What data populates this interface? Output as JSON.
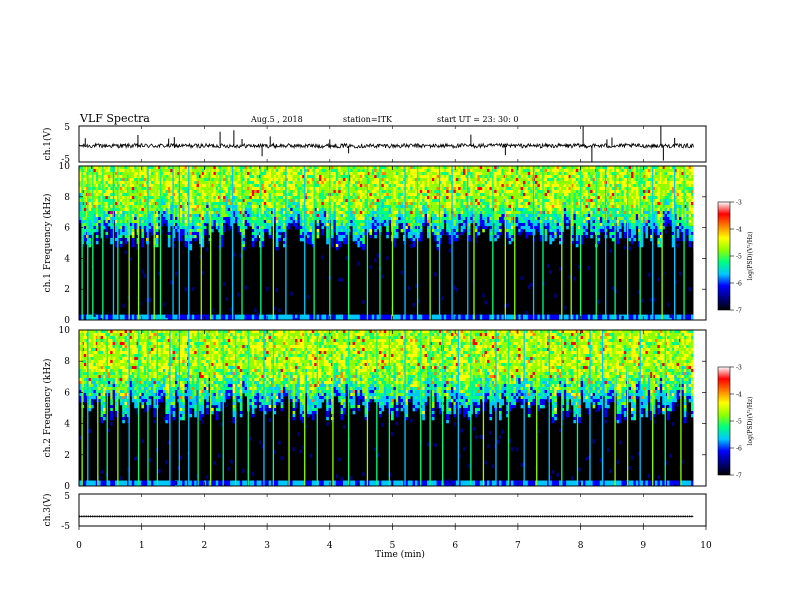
{
  "header": {
    "title": "VLF Spectra",
    "date": "Aug.5 , 2018",
    "station": "station=ITK",
    "start": "start UT = 23: 30: 0"
  },
  "colors": {
    "background": "#000000",
    "trace": "#000000",
    "colormap": [
      "#000000",
      "#000080",
      "#0000ff",
      "#00c8ff",
      "#00ff80",
      "#90ff00",
      "#ffff00",
      "#ff8000",
      "#ff0000",
      "#ffffff"
    ]
  },
  "chart_data": [
    {
      "type": "line",
      "panel": "ch1-waveform",
      "ylabel": "ch.1(V)",
      "yticks": [
        "5",
        "-5"
      ],
      "ylim": [
        -5,
        5
      ],
      "x_range": [
        0,
        9.8
      ],
      "baseline_level": -0.5,
      "noise_amplitude": 0.6,
      "spikes": [
        {
          "x": 0.1,
          "y": 1.6
        },
        {
          "x": 0.94,
          "y": 2.5
        },
        {
          "x": 1.43,
          "y": 1.5
        },
        {
          "x": 1.52,
          "y": 1.9
        },
        {
          "x": 2.25,
          "y": 3.4
        },
        {
          "x": 2.47,
          "y": 3.8
        },
        {
          "x": 2.6,
          "y": 1.4
        },
        {
          "x": 2.92,
          "y": -3.4
        },
        {
          "x": 3.05,
          "y": 2.1
        },
        {
          "x": 4.0,
          "y": 1.3
        },
        {
          "x": 4.3,
          "y": -2.6
        },
        {
          "x": 6.25,
          "y": 2.6
        },
        {
          "x": 6.8,
          "y": -3.1
        },
        {
          "x": 8.04,
          "y": 4.9
        },
        {
          "x": 8.18,
          "y": -5.0
        },
        {
          "x": 8.42,
          "y": 1.3
        },
        {
          "x": 8.5,
          "y": 1.8
        },
        {
          "x": 9.28,
          "y": 5.0
        },
        {
          "x": 9.32,
          "y": -4.6
        },
        {
          "x": 9.5,
          "y": 1.7
        }
      ]
    },
    {
      "type": "heatmap",
      "panel": "ch1-spectrogram",
      "ylabel": "ch.1 Frequency (kHz)",
      "yticks": [
        "0",
        "2",
        "4",
        "6",
        "8",
        "10"
      ],
      "ylim": [
        0,
        10
      ],
      "x_range": [
        0,
        9.8
      ],
      "noise_floor_khz": 5.5,
      "colorbar": {
        "label": "log(PSD)(V²/Hz)",
        "ticks": [
          "-3",
          "-4",
          "-5",
          "-6",
          "-7"
        ],
        "range": [
          -7,
          -3
        ]
      },
      "burst_times": [
        0.05,
        0.14,
        0.22,
        0.38,
        0.55,
        0.62,
        0.8,
        0.95,
        1.1,
        1.2,
        1.3,
        1.5,
        1.6,
        1.75,
        1.95,
        2.1,
        2.25,
        2.45,
        2.6,
        2.9,
        3.1,
        3.3,
        3.6,
        3.75,
        4.0,
        4.3,
        4.6,
        4.8,
        5.0,
        5.2,
        5.4,
        5.6,
        5.75,
        5.95,
        6.2,
        6.3,
        6.6,
        6.8,
        6.95,
        7.25,
        7.4,
        7.7,
        7.85,
        8.0,
        8.25,
        8.4,
        8.55,
        8.75,
        8.95,
        9.15,
        9.3,
        9.5,
        9.65
      ]
    },
    {
      "type": "heatmap",
      "panel": "ch2-spectrogram",
      "ylabel": "ch.2 Frequency (kHz)",
      "yticks": [
        "0",
        "2",
        "4",
        "6",
        "8",
        "10"
      ],
      "ylim": [
        0,
        10
      ],
      "x_range": [
        0,
        9.8
      ],
      "noise_floor_khz": 5.0,
      "colorbar": {
        "label": "log(PSD)(V²/Hz)",
        "ticks": [
          "-3",
          "-4",
          "-5",
          "-6",
          "-7"
        ],
        "range": [
          -7,
          -3
        ]
      },
      "burst_times": [
        0.05,
        0.14,
        0.3,
        0.45,
        0.62,
        0.8,
        0.95,
        1.1,
        1.25,
        1.45,
        1.6,
        1.75,
        1.9,
        2.1,
        2.3,
        2.5,
        2.7,
        2.95,
        3.1,
        3.35,
        3.6,
        3.8,
        4.05,
        4.3,
        4.6,
        4.75,
        4.95,
        5.2,
        5.45,
        5.6,
        5.8,
        6.05,
        6.25,
        6.45,
        6.65,
        6.85,
        7.1,
        7.3,
        7.5,
        7.7,
        7.95,
        8.15,
        8.35,
        8.55,
        8.75,
        8.95,
        9.15,
        9.35,
        9.6
      ]
    },
    {
      "type": "line",
      "panel": "ch3-waveform",
      "ylabel": "ch.3(V)",
      "yticks": [
        "5",
        "-5"
      ],
      "ylim": [
        -5,
        5
      ],
      "x_range": [
        0,
        9.8
      ],
      "baseline_level": -2.0,
      "xlabel": "Time (min)",
      "xticks": [
        "0",
        "1",
        "2",
        "3",
        "4",
        "5",
        "6",
        "7",
        "8",
        "9",
        "10"
      ],
      "xlim": [
        0,
        10
      ]
    }
  ]
}
